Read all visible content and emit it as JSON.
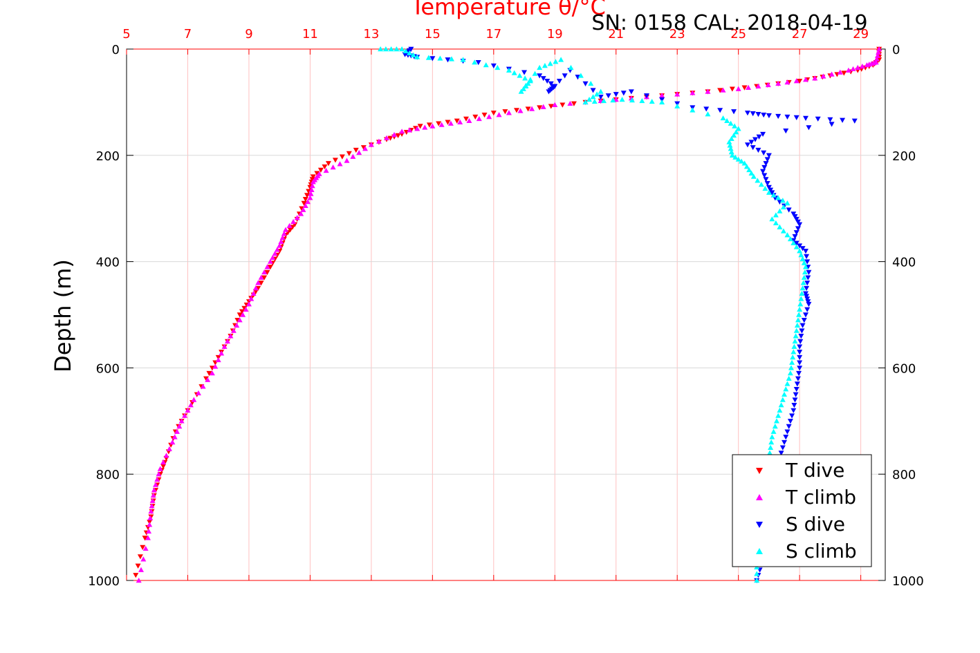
{
  "header": {
    "serial_calibration": "SN: 0158  CAL: 2018-04-19"
  },
  "chart_data": {
    "type": "scatter",
    "title": "Temperature θ/°C",
    "xlabel_top": "Temperature θ/°C",
    "ylabel": "Depth (m)",
    "xlim": [
      5,
      29.8
    ],
    "ylim": [
      0,
      1000
    ],
    "y_reversed": true,
    "x_ticks": [
      5,
      7,
      9,
      11,
      13,
      15,
      17,
      19,
      21,
      23,
      25,
      27,
      29
    ],
    "x_tick_labels": [
      "5",
      "7",
      "9",
      "11",
      "13",
      "15",
      "17",
      "19",
      "21",
      "23",
      "25",
      "27",
      "29"
    ],
    "y_ticks": [
      0,
      200,
      400,
      600,
      800,
      1000
    ],
    "y_tick_labels": [
      "0",
      "200",
      "400",
      "600",
      "800",
      "1000"
    ],
    "grid": true,
    "legend_position": "bottom-right",
    "colors": {
      "temperature_axis": "#ff0000",
      "grid_x": "#ffc0c0",
      "grid_y": "#d8d8d8"
    },
    "series": [
      {
        "name": "T dive",
        "color": "#ff0000",
        "marker": "triangle-down",
        "x": [
          29.6,
          29.6,
          29.4,
          28.9,
          28.0,
          27.0,
          25.6,
          24.0,
          22.0,
          20.0,
          18.5,
          17.0,
          15.8,
          14.6,
          14.0,
          13.5,
          12.5,
          11.6,
          11.1,
          11.0,
          10.8,
          10.5,
          10.2,
          10.0,
          9.7,
          9.3,
          9.0,
          8.7,
          8.4,
          8.0,
          7.6,
          7.0,
          6.6,
          6.3,
          6.1,
          5.9,
          5.8,
          5.6,
          5.3
        ],
        "y": [
          0,
          20,
          30,
          40,
          50,
          60,
          70,
          80,
          90,
          100,
          110,
          120,
          135,
          145,
          160,
          170,
          190,
          215,
          240,
          260,
          290,
          330,
          350,
          380,
          410,
          450,
          475,
          500,
          540,
          580,
          620,
          680,
          720,
          770,
          800,
          840,
          880,
          920,
          990
        ]
      },
      {
        "name": "T climb",
        "color": "#ff00ff",
        "marker": "triangle-up",
        "x": [
          29.6,
          29.5,
          29.2,
          28.6,
          27.5,
          26.3,
          25.0,
          23.0,
          21.0,
          19.0,
          17.5,
          16.2,
          15.0,
          14.0,
          13.0,
          12.2,
          11.3,
          11.1,
          11.0,
          10.7,
          10.2,
          10.0,
          9.7,
          9.3,
          9.0,
          8.6,
          8.2,
          7.8,
          7.2,
          6.8,
          6.5,
          6.1,
          5.9,
          5.8,
          5.7,
          5.4
        ],
        "y": [
          0,
          25,
          30,
          40,
          55,
          65,
          75,
          85,
          95,
          105,
          120,
          135,
          145,
          155,
          180,
          210,
          235,
          250,
          280,
          310,
          340,
          370,
          400,
          440,
          480,
          520,
          560,
          610,
          660,
          700,
          740,
          790,
          830,
          870,
          920,
          1000
        ]
      },
      {
        "name": "S dive",
        "color": "#0000ff",
        "marker": "triangle-down",
        "x": [
          14.3,
          14.1,
          14.5,
          16.5,
          18.5,
          19.0,
          18.8,
          19.5,
          20.5,
          21.5,
          23.5,
          25.3,
          26.0,
          27.2,
          28.8,
          25.8,
          25.3,
          26.0,
          25.8,
          26.0,
          26.2,
          26.8,
          27.0,
          26.8,
          27.2,
          27.3,
          27.2,
          27.3,
          27.1,
          27.0,
          27.0,
          26.9,
          26.8,
          26.6,
          26.4,
          26.3,
          26.2,
          26.0,
          25.9,
          25.8,
          25.6
        ],
        "y": [
          0,
          10,
          15,
          25,
          50,
          70,
          80,
          40,
          90,
          80,
          110,
          120,
          125,
          130,
          135,
          160,
          180,
          200,
          230,
          260,
          280,
          310,
          330,
          360,
          380,
          420,
          460,
          480,
          520,
          560,
          600,
          640,
          680,
          720,
          760,
          800,
          840,
          880,
          920,
          960,
          1000
        ]
      },
      {
        "name": "S climb",
        "color": "#00ffff",
        "marker": "triangle-up",
        "x": [
          13.3,
          14.0,
          14.5,
          16.0,
          17.5,
          18.2,
          17.9,
          18.5,
          19.2,
          20.5,
          20.0,
          21.2,
          22.5,
          24.5,
          25.0,
          24.7,
          24.8,
          25.2,
          25.5,
          26.0,
          26.6,
          26.1,
          26.6,
          27.0,
          27.2,
          27.1,
          27.0,
          26.9,
          26.8,
          26.7,
          26.5,
          26.3,
          26.1,
          26.0,
          25.9,
          25.8,
          25.7,
          25.6,
          25.6
        ],
        "y": [
          0,
          0,
          15,
          20,
          40,
          60,
          80,
          35,
          20,
          80,
          100,
          95,
          100,
          130,
          150,
          175,
          200,
          215,
          240,
          270,
          290,
          320,
          350,
          380,
          410,
          450,
          490,
          530,
          570,
          610,
          650,
          690,
          730,
          770,
          810,
          850,
          900,
          950,
          1000
        ]
      }
    ]
  }
}
